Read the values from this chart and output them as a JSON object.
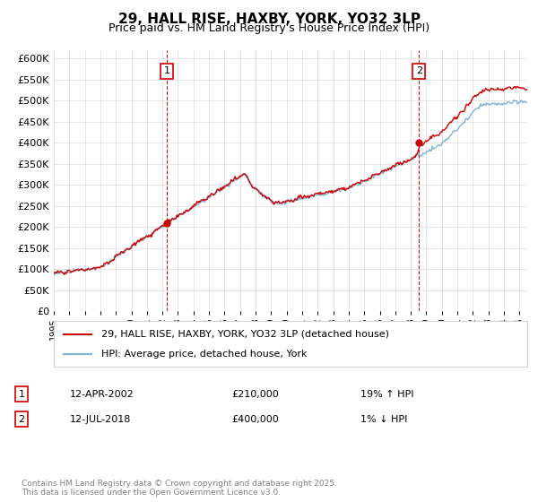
{
  "title": "29, HALL RISE, HAXBY, YORK, YO32 3LP",
  "subtitle": "Price paid vs. HM Land Registry's House Price Index (HPI)",
  "legend_line1": "29, HALL RISE, HAXBY, YORK, YO32 3LP (detached house)",
  "legend_line2": "HPI: Average price, detached house, York",
  "annotation1_label": "1",
  "annotation1_date": "12-APR-2002",
  "annotation1_price": "£210,000",
  "annotation1_hpi": "19% ↑ HPI",
  "annotation1_year": 2002.28,
  "annotation2_label": "2",
  "annotation2_date": "12-JUL-2018",
  "annotation2_price": "£400,000",
  "annotation2_hpi": "1% ↓ HPI",
  "annotation2_year": 2018.53,
  "footer": "Contains HM Land Registry data © Crown copyright and database right 2025.\nThis data is licensed under the Open Government Licence v3.0.",
  "red_color": "#cc0000",
  "blue_color": "#7fb3d3",
  "vline_color": "#cc0000",
  "background_color": "#ffffff",
  "ylim": [
    0,
    620000
  ],
  "xlim_start": 1995,
  "xlim_end": 2025.5,
  "yticks": [
    0,
    50000,
    100000,
    150000,
    200000,
    250000,
    300000,
    350000,
    400000,
    450000,
    500000,
    550000,
    600000
  ]
}
